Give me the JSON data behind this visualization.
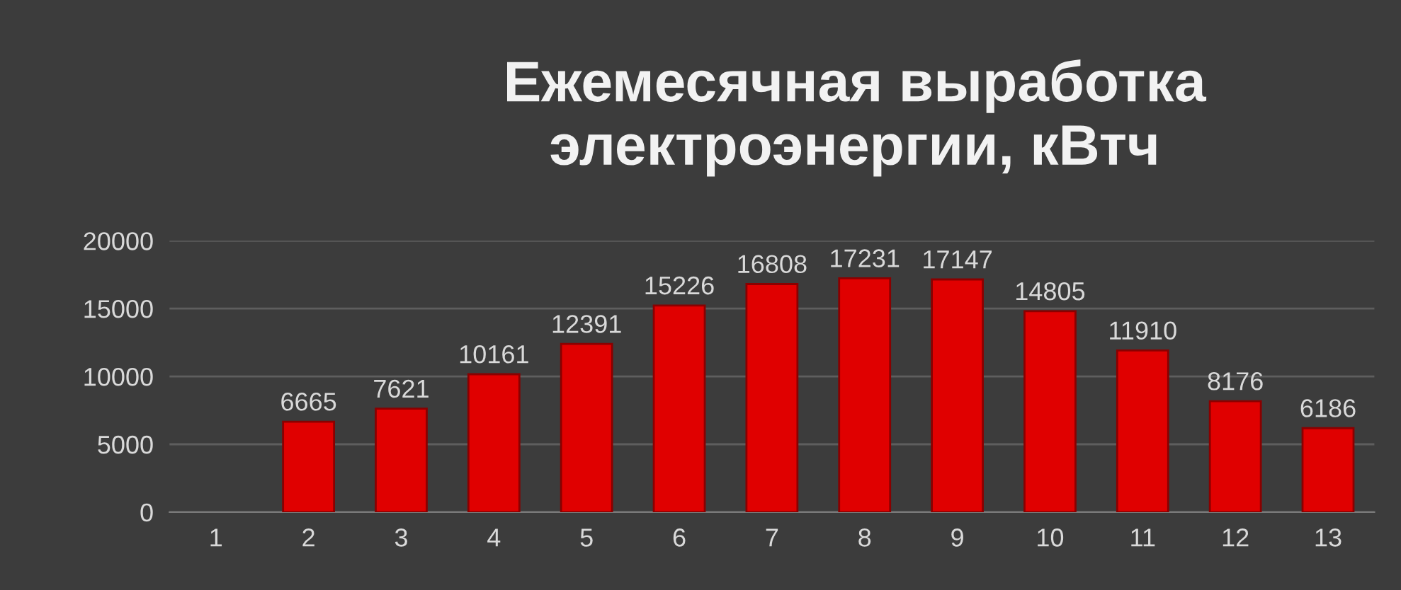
{
  "chart_data": {
    "type": "bar",
    "title": "Ежемесячная выработка\nэлектроэнергии, кВтч",
    "categories": [
      "1",
      "2",
      "3",
      "4",
      "5",
      "6",
      "7",
      "8",
      "9",
      "10",
      "11",
      "12",
      "13"
    ],
    "values": [
      null,
      6665,
      7621,
      10161,
      12391,
      15226,
      16808,
      17231,
      17147,
      14805,
      11910,
      8176,
      6186
    ],
    "color": "#e00000",
    "ylim": [
      0,
      20000
    ],
    "yticks": [
      0,
      5000,
      10000,
      15000,
      20000
    ],
    "grid": "y",
    "data_labels": true
  }
}
